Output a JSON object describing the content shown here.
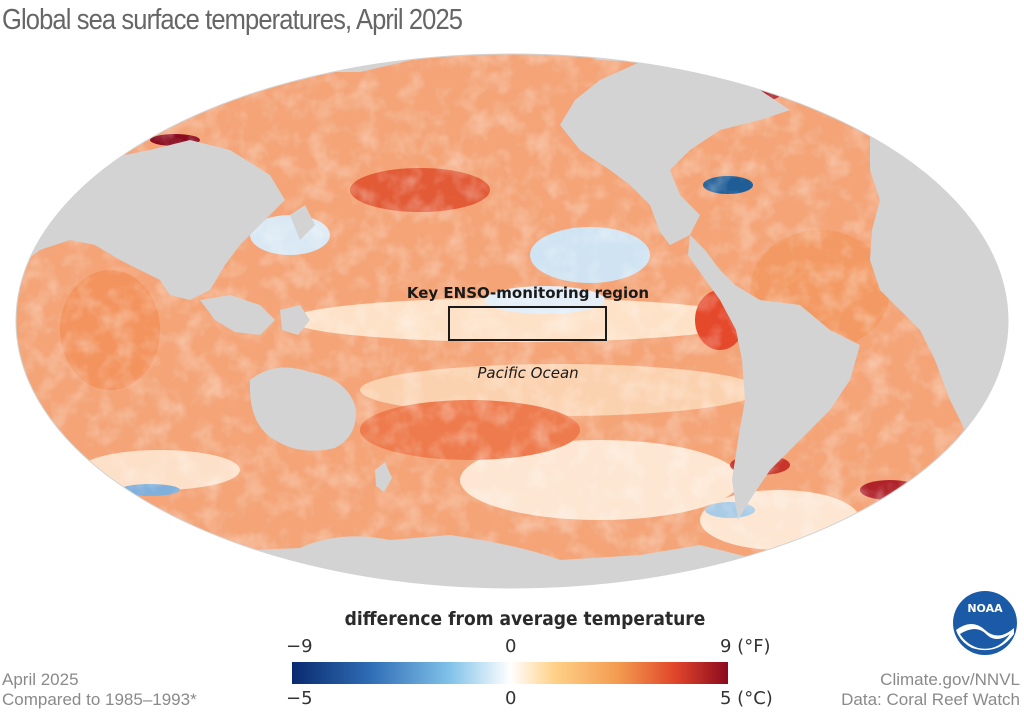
{
  "title": "Global sea surface temperatures, April 2025",
  "map": {
    "annotation_box_label": "Key ENSO-monitoring region",
    "ocean_label": "Pacific Ocean",
    "land_color": "#d3d3d3",
    "warm_color": "#f08a5a",
    "cool_color": "#7fb0dc"
  },
  "legend": {
    "title": "difference from average temperature",
    "fahrenheit": {
      "min": "−9",
      "mid": "0",
      "max": "9 (°F)"
    },
    "celsius": {
      "min": "−5",
      "mid": "0",
      "max": "5 (°C)"
    },
    "colors": [
      "#0a2a6e",
      "#2f6db5",
      "#7fc1e8",
      "#ffffff",
      "#ffd28a",
      "#f39a4f",
      "#e0452a",
      "#8a0a1e"
    ]
  },
  "footer": {
    "left_line1": "April 2025",
    "left_line2": "Compared to 1985–1993*",
    "right_line1": "Climate.gov/NNVL",
    "right_line2": "Data: Coral Reef Watch"
  },
  "logo": {
    "text": "NOAA",
    "icon": "noaa-logo-icon"
  }
}
